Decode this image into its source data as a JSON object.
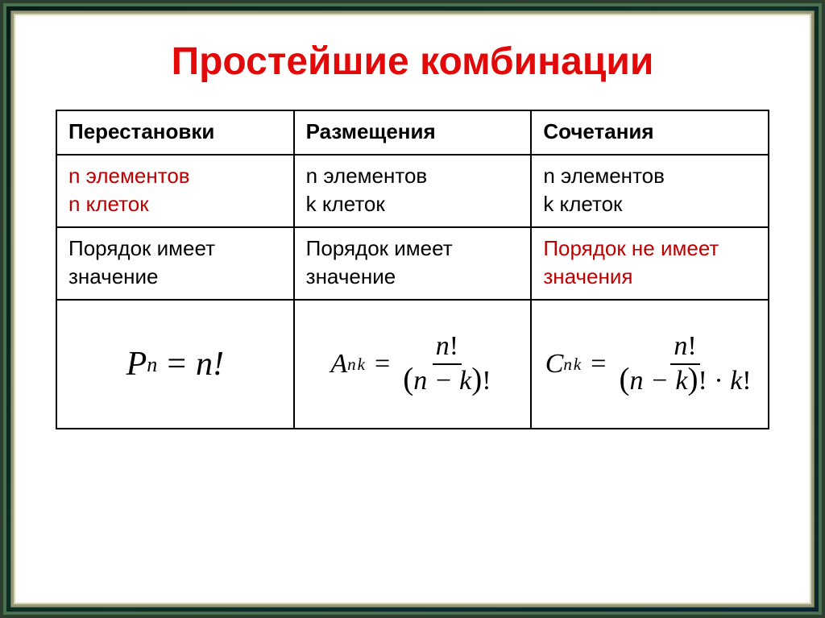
{
  "slide": {
    "title": "Простейшие комбинации",
    "title_color": "#e30909",
    "title_fontsize": 48,
    "background_color": "#ffffff",
    "frame_color": "#9f9f7f"
  },
  "table": {
    "border_color": "#000000",
    "font_family": "Arial",
    "header_fontsize": 26,
    "body_fontsize": 26,
    "highlight_color": "#c00000",
    "columns": [
      "Перестановки",
      "Размещения",
      "Сочетания"
    ],
    "row_elements": [
      {
        "l1": "n элементов",
        "l2": "n клеток",
        "highlight": true
      },
      {
        "l1": "n элементов",
        "l2": "k клеток",
        "highlight": false
      },
      {
        "l1": "n элементов",
        "l2": "k клеток",
        "highlight": false
      }
    ],
    "row_order": [
      {
        "text": "Порядок имеет значение",
        "highlight": false
      },
      {
        "text": "Порядок имеет значение",
        "highlight": false
      },
      {
        "text": "Порядок не имеет значения",
        "highlight": true
      }
    ],
    "formulas": {
      "permutation": {
        "symbol": "P",
        "sub": "n",
        "rhs": "n!"
      },
      "arrangement": {
        "symbol": "A",
        "sub": "n",
        "sup": "k",
        "num": "n!",
        "den": "(n − k)!"
      },
      "combination": {
        "symbol": "C",
        "sub": "n",
        "sup": "k",
        "num": "n!",
        "den": "(n − k)! · k!"
      }
    }
  }
}
